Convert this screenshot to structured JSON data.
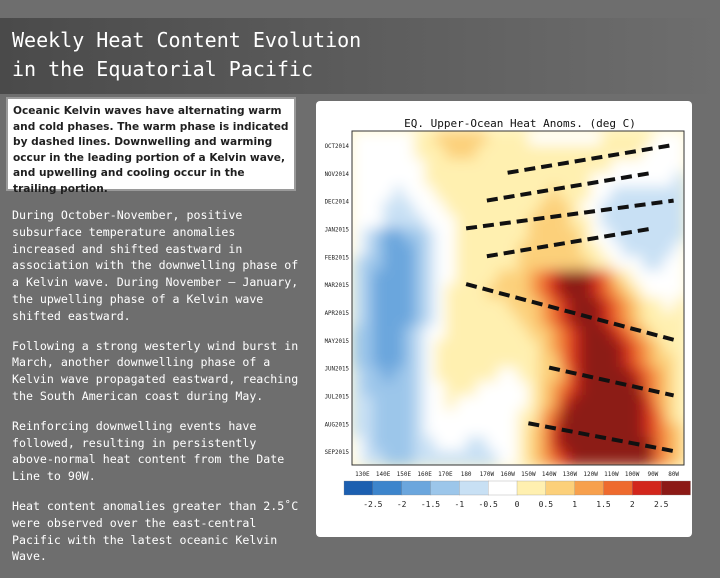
{
  "slide": {
    "title_line1": "Weekly Heat Content Evolution",
    "title_line2": "in the Equatorial Pacific",
    "callout": "Oceanic Kelvin waves have alternating warm and cold phases. The warm phase is indicated by dashed lines. Downwelling and warming occur in the leading portion of a Kelvin wave, and upwelling and cooling occur in the trailing portion.",
    "paragraphs": [
      "During October-November, positive subsurface temperature anomalies increased and shifted eastward in association with the downwelling phase of a Kelvin wave. During November – January, the upwelling phase of a Kelvin wave shifted eastward.",
      "Following a strong westerly wind burst in March, another downwelling phase of a Kelvin wave propagated eastward, reaching the South American coast during May.",
      "Reinforcing downwelling events have followed, resulting in persistently above-normal heat content from the Date Line to 90W.",
      "Heat content anomalies greater than 2.5˚C were observed over the east-central Pacific with the latest oceanic Kelvin Wave."
    ]
  },
  "chart_data": {
    "type": "heatmap",
    "title": "EQ. Upper-Ocean Heat Anoms. (deg C)",
    "y_labels": [
      "OCT2014",
      "NOV2014",
      "DEC2014",
      "JAN2015",
      "FEB2015",
      "MAR2015",
      "APR2015",
      "MAY2015",
      "JUN2015",
      "JUL2015",
      "AUG2015",
      "SEP2015"
    ],
    "x_labels": [
      "130E",
      "140E",
      "150E",
      "160E",
      "170E",
      "180",
      "170W",
      "160W",
      "150W",
      "140W",
      "130W",
      "120W",
      "110W",
      "100W",
      "90W",
      "80W"
    ],
    "colorbar_ticks": [
      "-2.5",
      "-2",
      "-1.5",
      "-1",
      "-0.5",
      "0",
      "0.5",
      "1",
      "1.5",
      "2",
      "2.5"
    ],
    "colorbar_colors": [
      "#1c5fb0",
      "#3d85cc",
      "#6ba6dd",
      "#9cc6ea",
      "#c8e0f4",
      "#ffffff",
      "#fff0b0",
      "#fcd07a",
      "#f7a04d",
      "#ee6a2e",
      "#d2261c",
      "#8c1a16"
    ],
    "dashed_lines": [
      {
        "start": [
          "160W",
          "NOV2014"
        ],
        "end": [
          "80W",
          "OCT2014"
        ]
      },
      {
        "start": [
          "170W",
          "DEC2014"
        ],
        "end": [
          "90W",
          "NOV2014"
        ]
      },
      {
        "start": [
          "180",
          "JAN2015"
        ],
        "end": [
          "80W",
          "DEC2014"
        ]
      },
      {
        "start": [
          "170W",
          "FEB2015"
        ],
        "end": [
          "90W",
          "JAN2015"
        ]
      },
      {
        "start": [
          "180",
          "MAR2015"
        ],
        "end": [
          "80W",
          "MAY2015"
        ]
      },
      {
        "start": [
          "140W",
          "JUN2015"
        ],
        "end": [
          "80W",
          "JUL2015"
        ]
      },
      {
        "start": [
          "150W",
          "AUG2015"
        ],
        "end": [
          "80W",
          "SEP2015"
        ]
      }
    ]
  }
}
